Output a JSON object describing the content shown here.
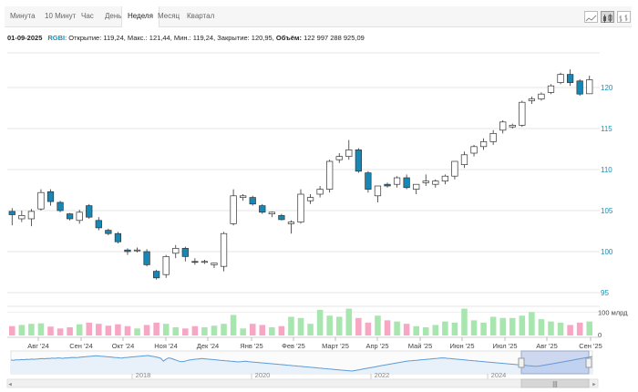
{
  "tabs": [
    {
      "label": "Минута",
      "active": false
    },
    {
      "label": "10 Минут",
      "active": false
    },
    {
      "label": "Час",
      "active": false
    },
    {
      "label": "День",
      "active": false
    },
    {
      "label": "Неделя",
      "active": true
    },
    {
      "label": "Месяц",
      "active": false
    },
    {
      "label": "Квартал",
      "active": false
    }
  ],
  "chart_type_buttons": [
    {
      "icon": "line-chart-icon",
      "active": false
    },
    {
      "icon": "candlestick-chart-icon",
      "active": true
    },
    {
      "icon": "bar-chart-icon",
      "active": false
    }
  ],
  "info": {
    "date": "01-09-2025",
    "ticker": "RGBI",
    "text": ": Открытие: 119,24, Макс.: 121,44, Мин.: 119,24, Закрытие: 120,95,",
    "volume_label": "Объём:",
    "volume_value": "122 997 288 925,09"
  },
  "colors": {
    "up": "#ffffff",
    "down": "#1688b8",
    "vol_up": "#a8e6b0",
    "vol_down": "#f7a6c3",
    "axis": "#1a8fb5",
    "navigator": "#5b9bd5"
  },
  "chart_data": {
    "type": "candlestick",
    "ylim": [
      94,
      124
    ],
    "y_ticks": [
      95,
      100,
      105,
      110,
      115,
      120
    ],
    "vol_tick_label": "100 млрд",
    "vol_zero_label": "0",
    "x_labels": [
      "Авг '24",
      "Сен '24",
      "Окт '24",
      "Ноя '24",
      "Дек '24",
      "Янв '25",
      "Фев '25",
      "Март '25",
      "Апр '25",
      "Май '25",
      "Июн '25",
      "Июл '25",
      "Авг '25",
      "Сен '25"
    ],
    "candles": [
      {
        "o": 104.9,
        "h": 105.3,
        "l": 103.2,
        "c": 104.5,
        "v": 40
      },
      {
        "o": 104.0,
        "h": 105.0,
        "l": 103.6,
        "c": 104.4,
        "v": 45
      },
      {
        "o": 104.0,
        "h": 105.2,
        "l": 103.1,
        "c": 104.9,
        "v": 50
      },
      {
        "o": 105.2,
        "h": 107.6,
        "l": 105.0,
        "c": 107.2,
        "v": 52
      },
      {
        "o": 107.3,
        "h": 107.6,
        "l": 105.6,
        "c": 106.1,
        "v": 38
      },
      {
        "o": 106.0,
        "h": 106.2,
        "l": 104.8,
        "c": 105.0,
        "v": 30
      },
      {
        "o": 104.6,
        "h": 104.7,
        "l": 103.8,
        "c": 104.0,
        "v": 35
      },
      {
        "o": 103.8,
        "h": 105.1,
        "l": 103.4,
        "c": 104.8,
        "v": 48
      },
      {
        "o": 105.6,
        "h": 105.8,
        "l": 104.0,
        "c": 104.2,
        "v": 55
      },
      {
        "o": 103.8,
        "h": 104.2,
        "l": 102.6,
        "c": 102.9,
        "v": 50
      },
      {
        "o": 102.6,
        "h": 102.8,
        "l": 102.0,
        "c": 102.2,
        "v": 42
      },
      {
        "o": 102.2,
        "h": 102.4,
        "l": 101.0,
        "c": 101.2,
        "v": 48
      },
      {
        "o": 100.2,
        "h": 100.4,
        "l": 99.6,
        "c": 100.0,
        "v": 40
      },
      {
        "o": 100.1,
        "h": 100.5,
        "l": 99.9,
        "c": 100.2,
        "v": 30
      },
      {
        "o": 100.0,
        "h": 100.3,
        "l": 98.2,
        "c": 98.4,
        "v": 45
      },
      {
        "o": 97.6,
        "h": 97.8,
        "l": 96.6,
        "c": 96.8,
        "v": 55
      },
      {
        "o": 97.2,
        "h": 99.6,
        "l": 96.8,
        "c": 99.4,
        "v": 50
      },
      {
        "o": 99.8,
        "h": 100.8,
        "l": 99.2,
        "c": 100.4,
        "v": 35
      },
      {
        "o": 100.4,
        "h": 100.6,
        "l": 98.8,
        "c": 99.4,
        "v": 30
      },
      {
        "o": 98.8,
        "h": 99.2,
        "l": 98.4,
        "c": 98.7,
        "v": 40
      },
      {
        "o": 98.7,
        "h": 99.0,
        "l": 98.5,
        "c": 98.8,
        "v": 35
      },
      {
        "o": 98.4,
        "h": 98.6,
        "l": 98.0,
        "c": 98.6,
        "v": 42
      },
      {
        "o": 98.2,
        "h": 102.4,
        "l": 97.6,
        "c": 102.2,
        "v": 50
      },
      {
        "o": 103.4,
        "h": 107.6,
        "l": 103.2,
        "c": 106.8,
        "v": 88
      },
      {
        "o": 106.6,
        "h": 107.0,
        "l": 106.2,
        "c": 106.8,
        "v": 30
      },
      {
        "o": 106.6,
        "h": 106.8,
        "l": 105.6,
        "c": 105.8,
        "v": 50
      },
      {
        "o": 105.6,
        "h": 105.8,
        "l": 104.6,
        "c": 104.8,
        "v": 45
      },
      {
        "o": 104.6,
        "h": 104.9,
        "l": 104.2,
        "c": 104.8,
        "v": 35
      },
      {
        "o": 104.4,
        "h": 104.6,
        "l": 103.8,
        "c": 103.9,
        "v": 40
      },
      {
        "o": 103.4,
        "h": 103.8,
        "l": 102.2,
        "c": 103.6,
        "v": 80
      },
      {
        "o": 103.6,
        "h": 107.6,
        "l": 103.4,
        "c": 107.0,
        "v": 75
      },
      {
        "o": 106.2,
        "h": 107.0,
        "l": 105.8,
        "c": 106.6,
        "v": 50
      },
      {
        "o": 107.0,
        "h": 108.0,
        "l": 106.6,
        "c": 107.6,
        "v": 110
      },
      {
        "o": 107.6,
        "h": 111.2,
        "l": 107.2,
        "c": 111.0,
        "v": 85
      },
      {
        "o": 111.2,
        "h": 112.0,
        "l": 110.8,
        "c": 111.6,
        "v": 80
      },
      {
        "o": 111.6,
        "h": 113.6,
        "l": 111.2,
        "c": 112.4,
        "v": 115
      },
      {
        "o": 112.4,
        "h": 112.6,
        "l": 109.6,
        "c": 109.8,
        "v": 75
      },
      {
        "o": 109.6,
        "h": 109.8,
        "l": 107.2,
        "c": 107.6,
        "v": 55
      },
      {
        "o": 106.8,
        "h": 108.0,
        "l": 106.0,
        "c": 108.0,
        "v": 85
      },
      {
        "o": 108.2,
        "h": 108.4,
        "l": 107.8,
        "c": 108.0,
        "v": 65
      },
      {
        "o": 108.2,
        "h": 109.2,
        "l": 107.8,
        "c": 109.0,
        "v": 60
      },
      {
        "o": 109.0,
        "h": 109.4,
        "l": 107.6,
        "c": 107.8,
        "v": 50
      },
      {
        "o": 107.6,
        "h": 108.2,
        "l": 107.0,
        "c": 108.2,
        "v": 40
      },
      {
        "o": 108.4,
        "h": 109.4,
        "l": 108.0,
        "c": 108.6,
        "v": 35
      },
      {
        "o": 108.2,
        "h": 108.8,
        "l": 107.8,
        "c": 108.6,
        "v": 45
      },
      {
        "o": 108.6,
        "h": 109.4,
        "l": 108.2,
        "c": 109.2,
        "v": 60
      },
      {
        "o": 109.2,
        "h": 111.0,
        "l": 108.8,
        "c": 111.0,
        "v": 55
      },
      {
        "o": 110.6,
        "h": 112.2,
        "l": 110.2,
        "c": 111.8,
        "v": 115
      },
      {
        "o": 112.0,
        "h": 113.0,
        "l": 111.6,
        "c": 112.8,
        "v": 65
      },
      {
        "o": 112.8,
        "h": 113.8,
        "l": 112.4,
        "c": 113.4,
        "v": 55
      },
      {
        "o": 113.4,
        "h": 114.8,
        "l": 113.0,
        "c": 114.4,
        "v": 80
      },
      {
        "o": 114.8,
        "h": 116.0,
        "l": 114.4,
        "c": 115.8,
        "v": 75
      },
      {
        "o": 115.2,
        "h": 115.6,
        "l": 115.0,
        "c": 115.4,
        "v": 75
      },
      {
        "o": 115.4,
        "h": 118.4,
        "l": 115.2,
        "c": 118.2,
        "v": 85
      },
      {
        "o": 118.4,
        "h": 118.9,
        "l": 118.0,
        "c": 118.6,
        "v": 100
      },
      {
        "o": 118.6,
        "h": 119.4,
        "l": 118.4,
        "c": 119.2,
        "v": 70
      },
      {
        "o": 119.4,
        "h": 120.4,
        "l": 119.2,
        "c": 120.2,
        "v": 60
      },
      {
        "o": 120.6,
        "h": 121.8,
        "l": 120.4,
        "c": 121.6,
        "v": 55
      },
      {
        "o": 121.6,
        "h": 122.2,
        "l": 120.2,
        "c": 120.6,
        "v": 45
      },
      {
        "o": 120.8,
        "h": 121.0,
        "l": 119.0,
        "c": 119.2,
        "v": 55
      },
      {
        "o": 119.24,
        "h": 121.44,
        "l": 119.24,
        "c": 120.95,
        "v": 60
      }
    ],
    "navigator": {
      "year_labels": [
        "2018",
        "2020",
        "2022",
        "2024"
      ],
      "values": [
        125,
        124,
        126,
        125,
        127,
        126,
        128,
        127,
        129,
        128,
        129,
        130,
        131,
        130,
        132,
        131,
        133,
        132,
        134,
        133,
        132,
        134,
        133,
        135,
        136,
        135,
        136,
        137,
        138,
        139,
        140,
        141,
        142,
        143,
        142,
        141,
        140,
        139,
        138,
        137,
        136,
        135,
        134,
        133,
        135,
        136,
        137,
        138,
        139,
        140,
        141,
        142,
        143,
        144,
        142,
        140,
        138,
        136,
        132,
        120,
        128,
        134,
        132,
        128,
        124,
        120,
        118,
        119,
        122,
        125,
        126,
        128,
        129,
        130,
        131,
        130,
        129,
        128,
        127,
        126,
        125,
        124,
        123,
        122,
        121,
        120,
        119,
        118,
        117,
        118,
        119,
        120,
        118,
        117,
        116,
        115,
        114,
        113,
        112,
        111,
        110,
        109,
        108,
        107,
        106,
        105,
        104,
        103,
        102,
        101,
        100,
        99,
        98,
        97,
        96,
        95,
        94,
        93,
        92,
        91,
        90,
        89,
        88,
        87,
        86,
        85,
        84,
        83,
        82,
        81,
        80,
        79,
        78,
        80,
        82,
        84,
        86,
        88,
        90,
        92,
        94,
        96,
        98,
        100,
        102,
        104,
        106,
        108,
        110,
        112,
        114,
        116,
        118,
        120,
        121,
        122,
        123,
        124,
        125,
        126,
        127,
        128,
        129,
        130,
        131,
        132,
        133,
        134,
        133,
        132,
        131,
        130,
        129,
        128,
        127,
        126,
        125,
        124,
        123,
        122,
        121,
        120,
        119,
        118,
        117,
        116,
        115,
        114,
        113,
        112,
        111,
        110,
        109,
        108,
        107,
        106,
        105,
        104,
        103,
        102,
        101,
        100,
        99,
        98,
        99,
        100,
        102,
        104,
        106,
        108,
        110,
        112,
        114,
        116,
        118,
        120,
        122,
        124,
        126,
        128,
        130,
        132,
        134,
        136,
        138,
        140
      ]
    }
  }
}
